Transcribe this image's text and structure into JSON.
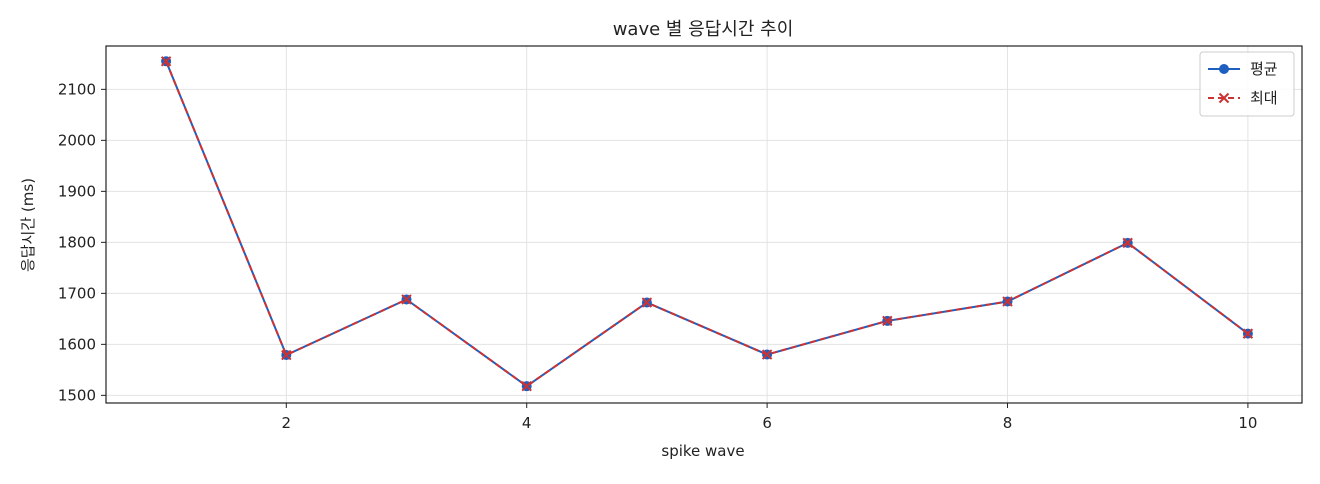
{
  "chart_data": {
    "type": "line",
    "title": "wave 별 응답시간 추이",
    "xlabel": "spike wave",
    "ylabel": "응답시간 (ms)",
    "x": [
      1,
      2,
      3,
      4,
      5,
      6,
      7,
      8,
      9,
      10
    ],
    "xlim": [
      0.5,
      10.45
    ],
    "ylim": [
      1485,
      2185
    ],
    "xticks": [
      2,
      4,
      6,
      8,
      10
    ],
    "yticks": [
      1500,
      1600,
      1700,
      1800,
      1900,
      2000,
      2100
    ],
    "grid": true,
    "legend_position": "top-right",
    "series": [
      {
        "name": "평균",
        "values": [
          2155,
          1579,
          1688,
          1518,
          1682,
          1580,
          1646,
          1684,
          1799,
          1621
        ],
        "color": "#1f5fbf",
        "marker": "circle",
        "line_style": "solid"
      },
      {
        "name": "최대",
        "values": [
          2155,
          1579,
          1688,
          1518,
          1682,
          1580,
          1646,
          1684,
          1799,
          1621
        ],
        "color": "#cc3333",
        "marker": "x",
        "line_style": "dashed"
      }
    ]
  }
}
